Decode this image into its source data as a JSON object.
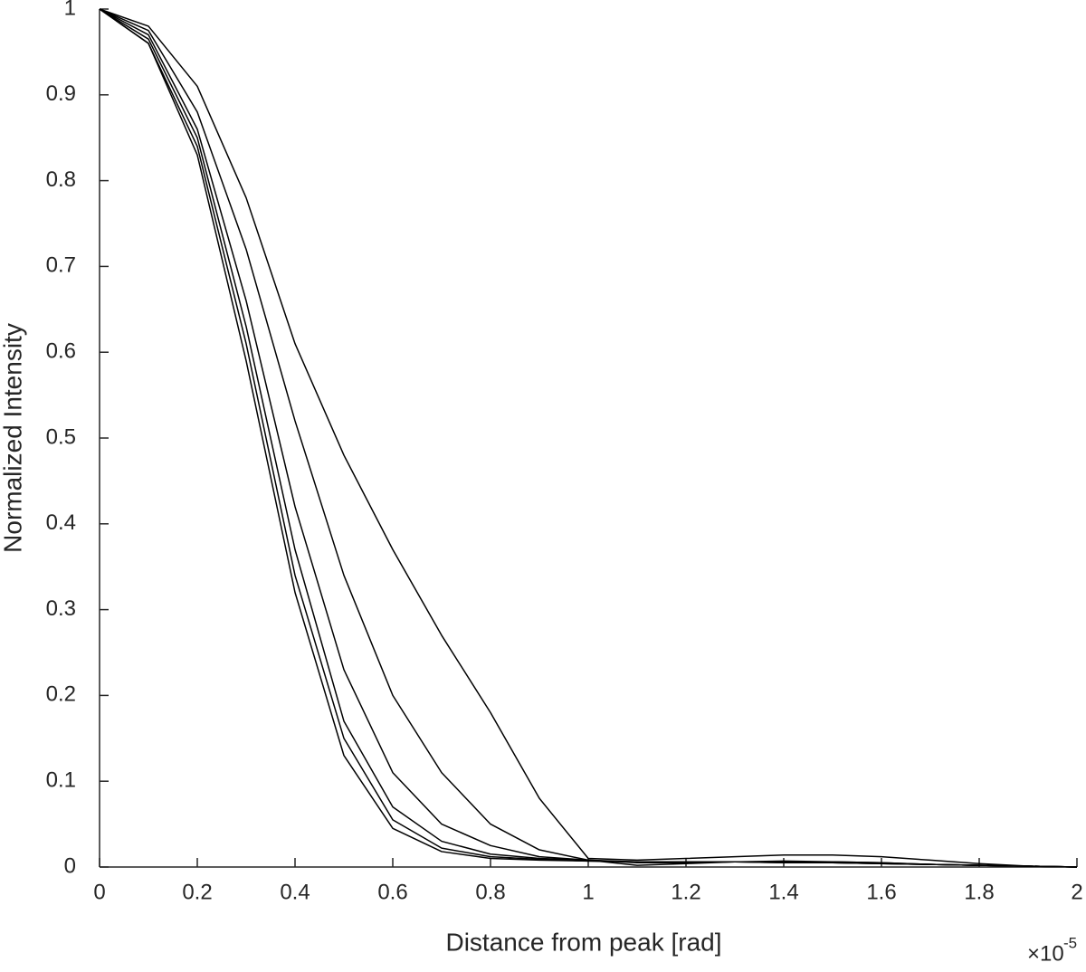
{
  "chart_data": {
    "type": "line",
    "x_label": "Distance from peak [rad]",
    "y_label": "Normalized Intensity",
    "x_multiplier": "×10",
    "x_exponent": "-5",
    "x": [
      0,
      0.1,
      0.2,
      0.3,
      0.4,
      0.5,
      0.6,
      0.7,
      0.8,
      0.9,
      1.0,
      1.1,
      1.2,
      1.3,
      1.4,
      1.5,
      1.6,
      1.7,
      1.8,
      1.9,
      2.0
    ],
    "series": [
      {
        "color": "#000000",
        "values": [
          1,
          0.96,
          0.83,
          0.59,
          0.32,
          0.13,
          0.045,
          0.018,
          0.01,
          0.008,
          0.007,
          0.006,
          0.006,
          0.006,
          0.005,
          0.005,
          0.004,
          0.003,
          0.002,
          0.001,
          0
        ]
      },
      {
        "color": "#000000",
        "values": [
          1,
          0.96,
          0.84,
          0.61,
          0.34,
          0.15,
          0.055,
          0.022,
          0.012,
          0.009,
          0.007,
          0.006,
          0.006,
          0.006,
          0.005,
          0.005,
          0.004,
          0.003,
          0.002,
          0.001,
          0
        ]
      },
      {
        "color": "#000000",
        "values": [
          1,
          0.965,
          0.85,
          0.63,
          0.37,
          0.17,
          0.07,
          0.03,
          0.015,
          0.01,
          0.008,
          0.006,
          0.006,
          0.006,
          0.006,
          0.005,
          0.004,
          0.003,
          0.002,
          0.001,
          0
        ]
      },
      {
        "color": "#000000",
        "values": [
          1,
          0.97,
          0.86,
          0.66,
          0.42,
          0.23,
          0.11,
          0.05,
          0.025,
          0.012,
          0.008,
          0.002,
          0.004,
          0.006,
          0.007,
          0.006,
          0.005,
          0.003,
          0.002,
          0.001,
          0
        ]
      },
      {
        "color": "#000000",
        "values": [
          1,
          0.975,
          0.88,
          0.72,
          0.52,
          0.34,
          0.2,
          0.11,
          0.05,
          0.02,
          0.008,
          0.005,
          0.005,
          0.006,
          0.006,
          0.006,
          0.005,
          0.003,
          0.002,
          0.001,
          0
        ]
      },
      {
        "color": "#000000",
        "values": [
          1,
          0.98,
          0.91,
          0.78,
          0.61,
          0.48,
          0.37,
          0.27,
          0.18,
          0.08,
          0.01,
          0.008,
          0.01,
          0.012,
          0.014,
          0.014,
          0.012,
          0.008,
          0.004,
          0.001,
          0
        ]
      }
    ],
    "xlim": [
      0,
      2
    ],
    "xticks": [
      0,
      0.2,
      0.4,
      0.6,
      0.8,
      1,
      1.2,
      1.4,
      1.6,
      1.8,
      2
    ],
    "ylim": [
      0,
      1
    ],
    "yticks": [
      0,
      0.1,
      0.2,
      0.3,
      0.4,
      0.5,
      0.6,
      0.7,
      0.8,
      0.9,
      1
    ],
    "grid": false
  }
}
